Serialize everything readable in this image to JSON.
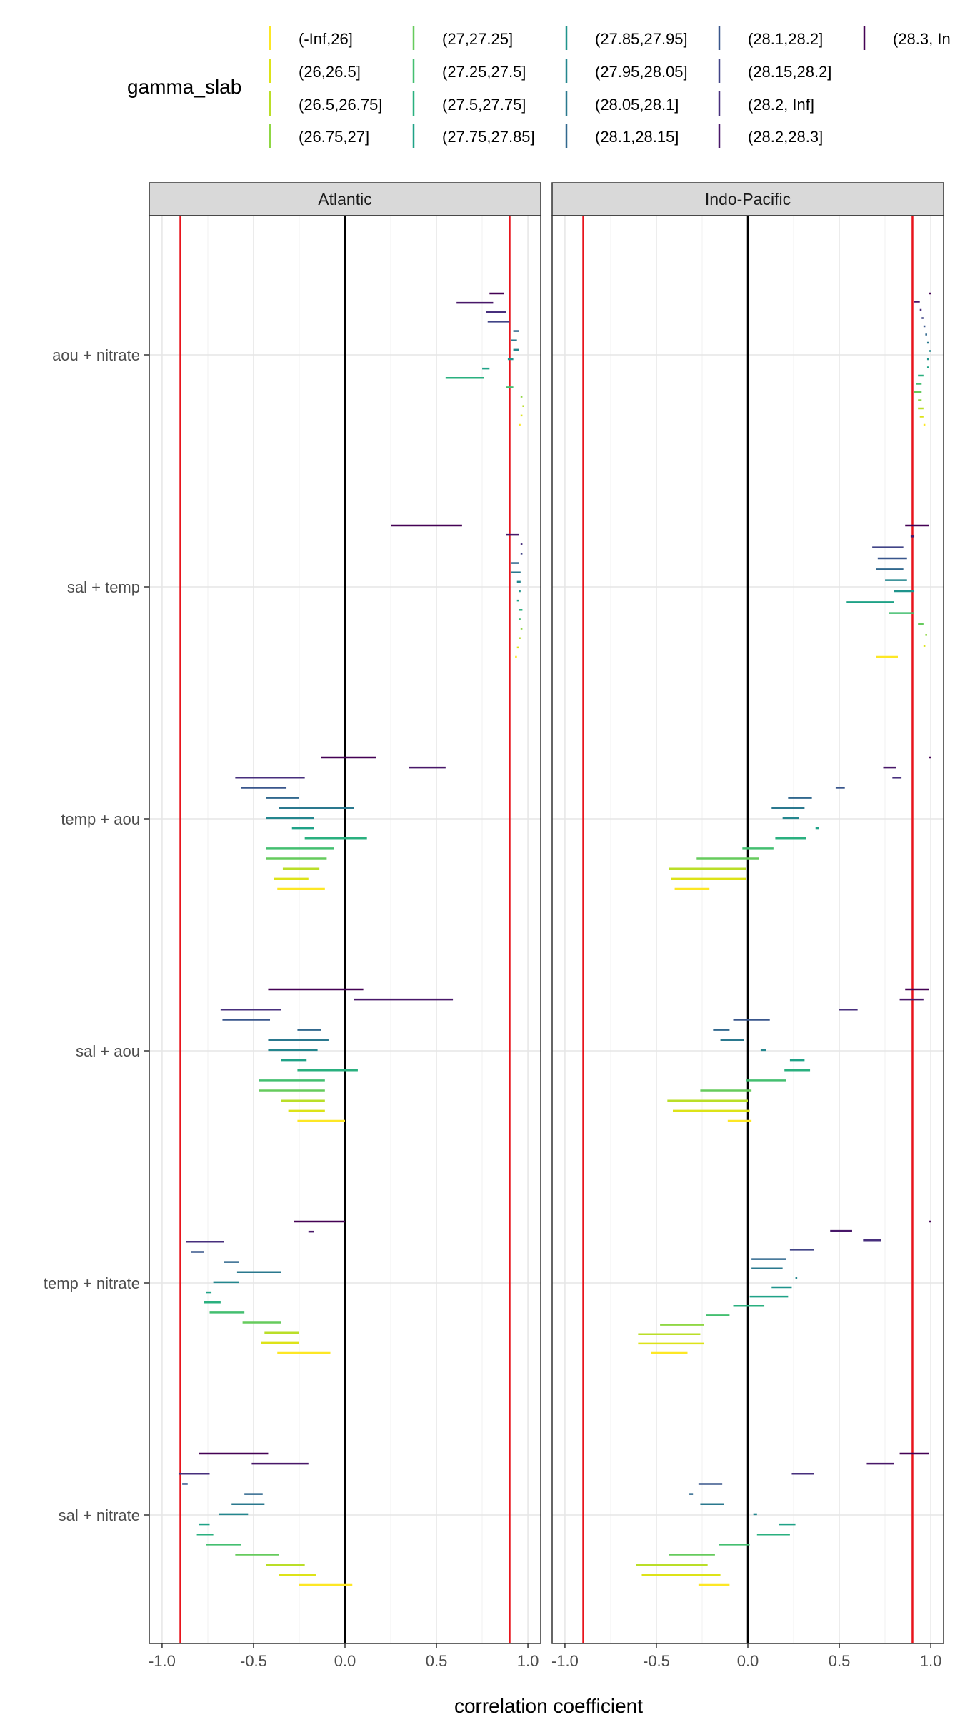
{
  "chart_data": {
    "type": "faceted_range",
    "xlabel": "correlation coefficient",
    "xlim": [
      -1.0,
      1.0
    ],
    "xticks": [
      -1.0,
      -0.5,
      0.0,
      0.5,
      1.0
    ],
    "xtick_labels": [
      "-1.0",
      "-0.5",
      "0.0",
      "0.5",
      "1.0"
    ],
    "reference_lines": {
      "zero": 0.0,
      "threshold_neg": -0.9,
      "threshold_pos": 0.9,
      "zero_color": "#000000",
      "threshold_color": "#e8141c"
    },
    "panels": [
      "Atlantic",
      "Indo-Pacific"
    ],
    "rows": [
      "aou + nitrate",
      "sal + temp",
      "temp + aou",
      "sal + aou",
      "temp + nitrate",
      "sal + nitrate"
    ],
    "legend": {
      "title": "gamma_slab",
      "items": [
        {
          "label": "(-Inf,26]",
          "color": "#fde725"
        },
        {
          "label": "(26,26.5]",
          "color": "#dde318"
        },
        {
          "label": "(26.5,26.75]",
          "color": "#bade28"
        },
        {
          "label": "(26.75,27]",
          "color": "#8fd744"
        },
        {
          "label": "(27,27.25]",
          "color": "#66cb5d"
        },
        {
          "label": "(27.25,27.5]",
          "color": "#44bf70"
        },
        {
          "label": "(27.5,27.75]",
          "color": "#2ab07f"
        },
        {
          "label": "(27.75,27.85]",
          "color": "#1fa287"
        },
        {
          "label": "(27.85,27.95]",
          "color": "#1f948c"
        },
        {
          "label": "(27.95,28.05]",
          "color": "#24868e"
        },
        {
          "label": "(28.05,28.1]",
          "color": "#2a788e"
        },
        {
          "label": "(28.1,28.15]",
          "color": "#31688e"
        },
        {
          "label": "(28.1,28.2]",
          "color": "#39568c"
        },
        {
          "label": "(28.15,28.2]",
          "color": "#414487"
        },
        {
          "label": "(28.2, Inf]",
          "color": "#472f7d"
        },
        {
          "label": "(28.2,28.3]",
          "color": "#481769"
        },
        {
          "label": "(28.3, In",
          "color": "#440154"
        }
      ]
    },
    "series": {
      "Atlantic": {
        "aou + nitrate": [
          [
            0.95,
            0.96
          ],
          [
            0.96,
            0.97
          ],
          [
            0.97,
            0.98
          ],
          [
            0.96,
            0.97
          ],
          [
            0.88,
            0.92
          ],
          [
            0.55,
            0.76
          ],
          [
            0.75,
            0.79
          ],
          [
            0.89,
            0.92
          ],
          [
            0.92,
            0.95
          ],
          [
            0.91,
            0.94
          ],
          [
            0.92,
            0.95
          ],
          [
            0.78,
            0.9
          ],
          [
            0.77,
            0.88
          ],
          [
            0.61,
            0.81
          ],
          [
            0.79,
            0.87
          ]
        ],
        "sal + temp": [
          [
            0.93,
            0.94
          ],
          [
            0.94,
            0.95
          ],
          [
            0.95,
            0.96
          ],
          [
            0.96,
            0.97
          ],
          [
            0.95,
            0.96
          ],
          [
            0.95,
            0.97
          ],
          [
            0.94,
            0.95
          ],
          [
            0.95,
            0.96
          ],
          [
            0.94,
            0.96
          ],
          [
            0.91,
            0.96
          ],
          [
            0.91,
            0.95
          ],
          [
            0.96,
            0.97
          ],
          [
            0.96,
            0.97
          ],
          [
            0.88,
            0.95
          ],
          [
            0.25,
            0.64
          ]
        ],
        "temp + aou": [
          [
            -0.37,
            -0.11
          ],
          [
            -0.39,
            -0.2
          ],
          [
            -0.34,
            -0.14
          ],
          [
            -0.43,
            -0.1
          ],
          [
            -0.43,
            -0.06
          ],
          [
            -0.22,
            0.12
          ],
          [
            -0.29,
            -0.17
          ],
          [
            -0.43,
            -0.17
          ],
          [
            -0.36,
            0.05
          ],
          [
            -0.43,
            -0.25
          ],
          [
            -0.57,
            -0.32
          ],
          [
            -0.6,
            -0.22
          ],
          [
            0.35,
            0.55
          ],
          [
            -0.13,
            0.17
          ]
        ],
        "sal + aou": [
          [
            -0.26,
            0.0
          ],
          [
            -0.31,
            -0.11
          ],
          [
            -0.35,
            -0.11
          ],
          [
            -0.47,
            -0.11
          ],
          [
            -0.47,
            -0.11
          ],
          [
            -0.26,
            0.07
          ],
          [
            -0.35,
            -0.21
          ],
          [
            -0.42,
            -0.15
          ],
          [
            -0.42,
            -0.09
          ],
          [
            -0.26,
            -0.13
          ],
          [
            -0.67,
            -0.41
          ],
          [
            -0.68,
            -0.35
          ],
          [
            0.05,
            0.59
          ],
          [
            -0.42,
            0.1
          ]
        ],
        "temp + nitrate": [
          [
            -0.37,
            -0.08
          ],
          [
            -0.46,
            -0.25
          ],
          [
            -0.44,
            -0.25
          ],
          [
            -0.56,
            -0.35
          ],
          [
            -0.74,
            -0.55
          ],
          [
            -0.77,
            -0.68
          ],
          [
            -0.76,
            -0.73
          ],
          [
            -0.72,
            -0.58
          ],
          [
            -0.59,
            -0.35
          ],
          [
            -0.66,
            -0.58
          ],
          [
            -0.84,
            -0.77
          ],
          [
            -0.87,
            -0.66
          ],
          [
            -0.2,
            -0.17
          ],
          [
            -0.28,
            0.0
          ]
        ],
        "sal + nitrate": [
          [
            -0.25,
            0.04
          ],
          [
            -0.36,
            -0.16
          ],
          [
            -0.43,
            -0.22
          ],
          [
            -0.6,
            -0.36
          ],
          [
            -0.76,
            -0.57
          ],
          [
            -0.81,
            -0.72
          ],
          [
            -0.8,
            -0.74
          ],
          [
            -0.69,
            -0.53
          ],
          [
            -0.62,
            -0.44
          ],
          [
            -0.55,
            -0.45
          ],
          [
            -0.89,
            -0.86
          ],
          [
            -0.91,
            -0.74
          ],
          [
            -0.51,
            -0.2
          ],
          [
            -0.8,
            -0.42
          ]
        ]
      },
      "Indo-Pacific": {
        "aou + nitrate": [
          [
            0.96,
            0.97
          ],
          [
            0.94,
            0.96
          ],
          [
            0.93,
            0.96
          ],
          [
            0.93,
            0.95
          ],
          [
            0.91,
            0.95
          ],
          [
            0.92,
            0.95
          ],
          [
            0.93,
            0.96
          ],
          [
            0.98,
            0.99
          ],
          [
            0.98,
            0.99
          ],
          [
            0.99,
            1.0
          ],
          [
            0.98,
            0.99
          ],
          [
            0.97,
            0.98
          ],
          [
            0.96,
            0.97
          ],
          [
            0.95,
            0.96
          ],
          [
            0.94,
            0.95
          ],
          [
            0.91,
            0.94
          ],
          [
            0.99,
            1.0
          ]
        ],
        "sal + temp": [
          [
            0.7,
            0.82
          ],
          [
            0.96,
            0.97
          ],
          [
            0.97,
            0.98
          ],
          [
            0.93,
            0.96
          ],
          [
            0.77,
            0.91
          ],
          [
            0.54,
            0.8
          ],
          [
            0.8,
            0.91
          ],
          [
            0.75,
            0.87
          ],
          [
            0.7,
            0.85
          ],
          [
            0.71,
            0.87
          ],
          [
            0.68,
            0.85
          ],
          [
            0.89,
            0.91
          ],
          [
            0.86,
            0.99
          ]
        ],
        "temp + aou": [
          [
            -0.4,
            -0.21
          ],
          [
            -0.42,
            -0.01
          ],
          [
            -0.43,
            -0.01
          ],
          [
            -0.28,
            0.06
          ],
          [
            -0.03,
            0.14
          ],
          [
            0.15,
            0.32
          ],
          [
            0.37,
            0.39
          ],
          [
            0.19,
            0.28
          ],
          [
            0.13,
            0.31
          ],
          [
            0.22,
            0.35
          ],
          [
            0.48,
            0.53
          ],
          [
            0.79,
            0.84
          ],
          [
            0.74,
            0.81
          ],
          [
            0.99,
            1.0
          ]
        ],
        "sal + aou": [
          [
            -0.11,
            0.02
          ],
          [
            -0.41,
            0.01
          ],
          [
            -0.44,
            0.0
          ],
          [
            -0.26,
            0.02
          ],
          [
            -0.01,
            0.21
          ],
          [
            0.2,
            0.34
          ],
          [
            0.23,
            0.31
          ],
          [
            0.07,
            0.1
          ],
          [
            -0.15,
            -0.02
          ],
          [
            -0.19,
            -0.1
          ],
          [
            -0.08,
            0.12
          ],
          [
            0.5,
            0.6
          ],
          [
            0.83,
            0.96
          ],
          [
            0.86,
            0.99
          ]
        ],
        "temp + nitrate": [
          [
            -0.53,
            -0.33
          ],
          [
            -0.6,
            -0.24
          ],
          [
            -0.6,
            -0.26
          ],
          [
            -0.48,
            -0.24
          ],
          [
            -0.23,
            -0.1
          ],
          [
            -0.08,
            0.09
          ],
          [
            0.01,
            0.22
          ],
          [
            0.13,
            0.24
          ],
          [
            0.26,
            0.27
          ],
          [
            0.02,
            0.19
          ],
          [
            0.02,
            0.21
          ],
          [
            0.23,
            0.36
          ],
          [
            0.63,
            0.73
          ],
          [
            0.45,
            0.57
          ],
          [
            0.99,
            1.0
          ]
        ],
        "sal + nitrate": [
          [
            -0.27,
            -0.1
          ],
          [
            -0.58,
            -0.15
          ],
          [
            -0.61,
            -0.22
          ],
          [
            -0.43,
            -0.18
          ],
          [
            -0.16,
            0.01
          ],
          [
            0.05,
            0.23
          ],
          [
            0.17,
            0.26
          ],
          [
            0.03,
            0.05
          ],
          [
            -0.26,
            -0.13
          ],
          [
            -0.32,
            -0.3
          ],
          [
            -0.27,
            -0.14
          ],
          [
            0.24,
            0.36
          ],
          [
            0.65,
            0.8
          ],
          [
            0.83,
            0.99
          ]
        ]
      }
    }
  }
}
